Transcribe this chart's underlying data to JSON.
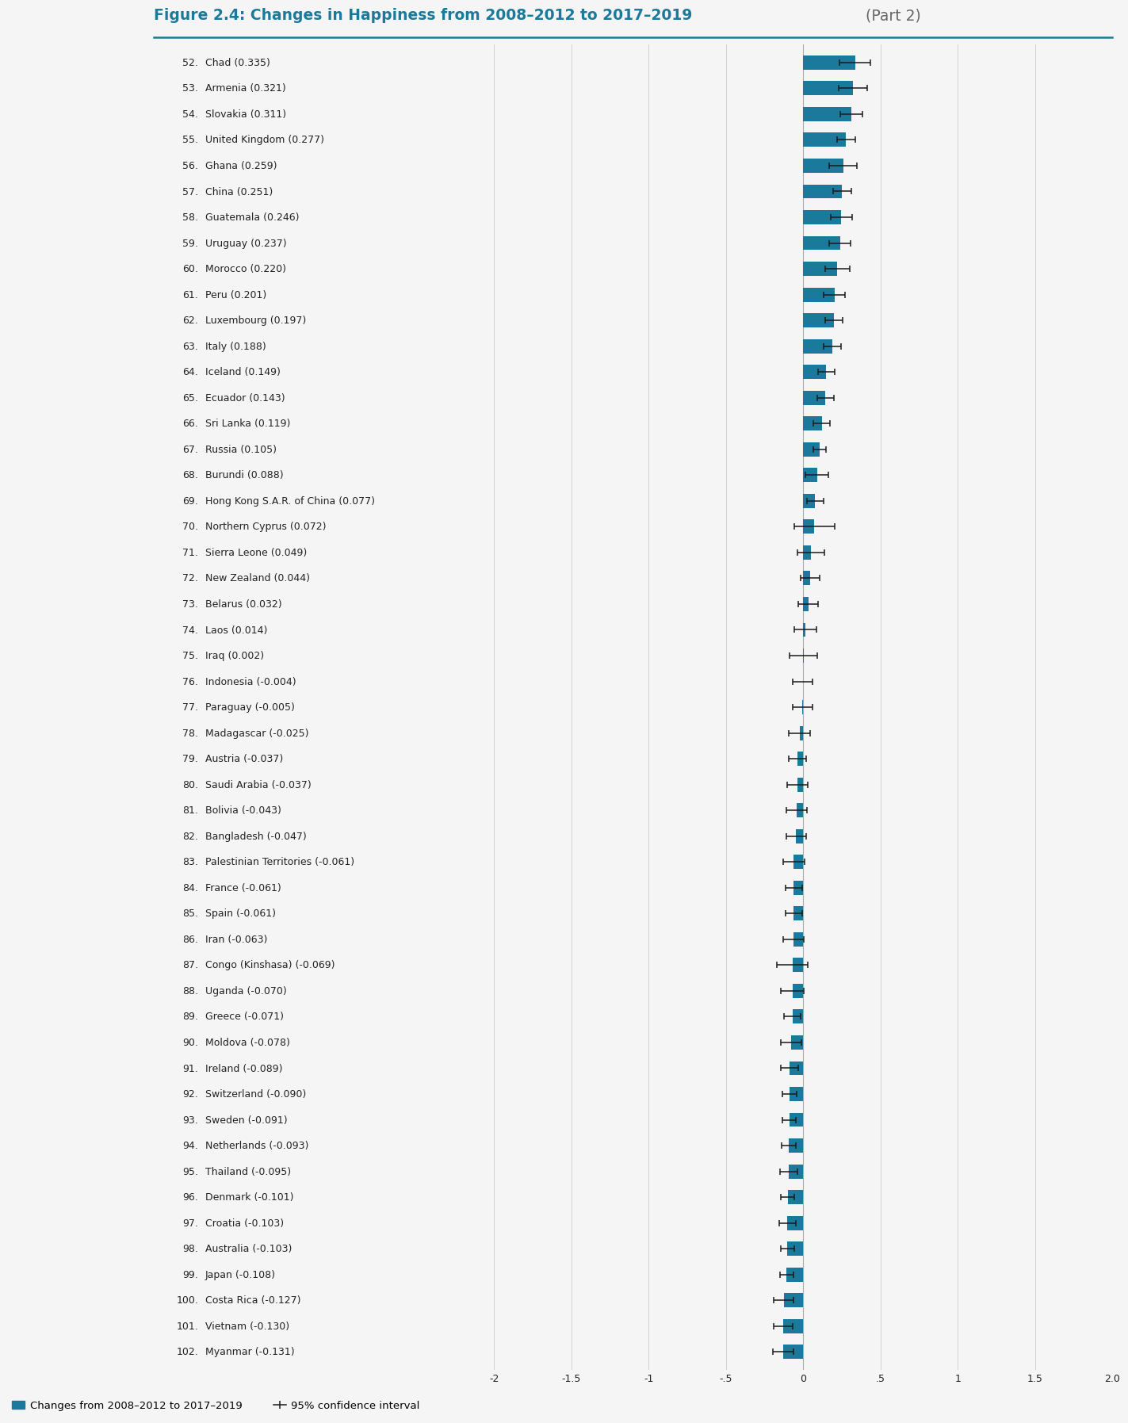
{
  "title_bold": "Figure 2.4: Changes in Happiness from 2008–2012 to 2017–2019",
  "title_normal": " (Part 2)",
  "background_color": "#f5f5f5",
  "bar_color": "#1b7a9c",
  "grid_color": "#d0d0d0",
  "title_color": "#1b7a9c",
  "separator_color": "#1b7a9c",
  "text_color": "#222222",
  "countries": [
    {
      "rank": 52,
      "name": "Chad",
      "value": 0.335,
      "ci_low": 0.1,
      "ci_high": 0.1
    },
    {
      "rank": 53,
      "name": "Armenia",
      "value": 0.321,
      "ci_low": 0.09,
      "ci_high": 0.09
    },
    {
      "rank": 54,
      "name": "Slovakia",
      "value": 0.311,
      "ci_low": 0.07,
      "ci_high": 0.07
    },
    {
      "rank": 55,
      "name": "United Kingdom",
      "value": 0.277,
      "ci_low": 0.06,
      "ci_high": 0.06
    },
    {
      "rank": 56,
      "name": "Ghana",
      "value": 0.259,
      "ci_low": 0.09,
      "ci_high": 0.09
    },
    {
      "rank": 57,
      "name": "China",
      "value": 0.251,
      "ci_low": 0.06,
      "ci_high": 0.06
    },
    {
      "rank": 58,
      "name": "Guatemala",
      "value": 0.246,
      "ci_low": 0.07,
      "ci_high": 0.07
    },
    {
      "rank": 59,
      "name": "Uruguay",
      "value": 0.237,
      "ci_low": 0.07,
      "ci_high": 0.07
    },
    {
      "rank": 60,
      "name": "Morocco",
      "value": 0.22,
      "ci_low": 0.08,
      "ci_high": 0.08
    },
    {
      "rank": 61,
      "name": "Peru",
      "value": 0.201,
      "ci_low": 0.07,
      "ci_high": 0.07
    },
    {
      "rank": 62,
      "name": "Luxembourg",
      "value": 0.197,
      "ci_low": 0.055,
      "ci_high": 0.055
    },
    {
      "rank": 63,
      "name": "Italy",
      "value": 0.188,
      "ci_low": 0.055,
      "ci_high": 0.055
    },
    {
      "rank": 64,
      "name": "Iceland",
      "value": 0.149,
      "ci_low": 0.055,
      "ci_high": 0.055
    },
    {
      "rank": 65,
      "name": "Ecuador",
      "value": 0.143,
      "ci_low": 0.055,
      "ci_high": 0.055
    },
    {
      "rank": 66,
      "name": "Sri Lanka",
      "value": 0.119,
      "ci_low": 0.055,
      "ci_high": 0.055
    },
    {
      "rank": 67,
      "name": "Russia",
      "value": 0.105,
      "ci_low": 0.04,
      "ci_high": 0.04
    },
    {
      "rank": 68,
      "name": "Burundi",
      "value": 0.088,
      "ci_low": 0.075,
      "ci_high": 0.075
    },
    {
      "rank": 69,
      "name": "Hong Kong S.A.R. of China",
      "value": 0.077,
      "ci_low": 0.055,
      "ci_high": 0.055
    },
    {
      "rank": 70,
      "name": "Northern Cyprus",
      "value": 0.072,
      "ci_low": 0.13,
      "ci_high": 0.13
    },
    {
      "rank": 71,
      "name": "Sierra Leone",
      "value": 0.049,
      "ci_low": 0.085,
      "ci_high": 0.085
    },
    {
      "rank": 72,
      "name": "New Zealand",
      "value": 0.044,
      "ci_low": 0.06,
      "ci_high": 0.06
    },
    {
      "rank": 73,
      "name": "Belarus",
      "value": 0.032,
      "ci_low": 0.065,
      "ci_high": 0.065
    },
    {
      "rank": 74,
      "name": "Laos",
      "value": 0.014,
      "ci_low": 0.07,
      "ci_high": 0.07
    },
    {
      "rank": 75,
      "name": "Iraq",
      "value": 0.002,
      "ci_low": 0.09,
      "ci_high": 0.09
    },
    {
      "rank": 76,
      "name": "Indonesia",
      "value": -0.004,
      "ci_low": 0.065,
      "ci_high": 0.065
    },
    {
      "rank": 77,
      "name": "Paraguay",
      "value": -0.005,
      "ci_low": 0.065,
      "ci_high": 0.065
    },
    {
      "rank": 78,
      "name": "Madagascar",
      "value": -0.025,
      "ci_low": 0.07,
      "ci_high": 0.07
    },
    {
      "rank": 79,
      "name": "Austria",
      "value": -0.037,
      "ci_low": 0.055,
      "ci_high": 0.055
    },
    {
      "rank": 80,
      "name": "Saudi Arabia",
      "value": -0.037,
      "ci_low": 0.065,
      "ci_high": 0.065
    },
    {
      "rank": 81,
      "name": "Bolivia",
      "value": -0.043,
      "ci_low": 0.065,
      "ci_high": 0.065
    },
    {
      "rank": 82,
      "name": "Bangladesh",
      "value": -0.047,
      "ci_low": 0.065,
      "ci_high": 0.065
    },
    {
      "rank": 83,
      "name": "Palestinian Territories",
      "value": -0.061,
      "ci_low": 0.07,
      "ci_high": 0.07
    },
    {
      "rank": 84,
      "name": "France",
      "value": -0.061,
      "ci_low": 0.055,
      "ci_high": 0.055
    },
    {
      "rank": 85,
      "name": "Spain",
      "value": -0.061,
      "ci_low": 0.055,
      "ci_high": 0.055
    },
    {
      "rank": 86,
      "name": "Iran",
      "value": -0.063,
      "ci_low": 0.065,
      "ci_high": 0.065
    },
    {
      "rank": 87,
      "name": "Congo (Kinshasa)",
      "value": -0.069,
      "ci_low": 0.1,
      "ci_high": 0.1
    },
    {
      "rank": 88,
      "name": "Uganda",
      "value": -0.07,
      "ci_low": 0.075,
      "ci_high": 0.075
    },
    {
      "rank": 89,
      "name": "Greece",
      "value": -0.071,
      "ci_low": 0.055,
      "ci_high": 0.055
    },
    {
      "rank": 90,
      "name": "Moldova",
      "value": -0.078,
      "ci_low": 0.065,
      "ci_high": 0.065
    },
    {
      "rank": 91,
      "name": "Ireland",
      "value": -0.089,
      "ci_low": 0.055,
      "ci_high": 0.055
    },
    {
      "rank": 92,
      "name": "Switzerland",
      "value": -0.09,
      "ci_low": 0.045,
      "ci_high": 0.045
    },
    {
      "rank": 93,
      "name": "Sweden",
      "value": -0.091,
      "ci_low": 0.045,
      "ci_high": 0.045
    },
    {
      "rank": 94,
      "name": "Netherlands",
      "value": -0.093,
      "ci_low": 0.045,
      "ci_high": 0.045
    },
    {
      "rank": 95,
      "name": "Thailand",
      "value": -0.095,
      "ci_low": 0.055,
      "ci_high": 0.055
    },
    {
      "rank": 96,
      "name": "Denmark",
      "value": -0.101,
      "ci_low": 0.045,
      "ci_high": 0.045
    },
    {
      "rank": 97,
      "name": "Croatia",
      "value": -0.103,
      "ci_low": 0.055,
      "ci_high": 0.055
    },
    {
      "rank": 98,
      "name": "Australia",
      "value": -0.103,
      "ci_low": 0.045,
      "ci_high": 0.045
    },
    {
      "rank": 99,
      "name": "Japan",
      "value": -0.108,
      "ci_low": 0.045,
      "ci_high": 0.045
    },
    {
      "rank": 100,
      "name": "Costa Rica",
      "value": -0.127,
      "ci_low": 0.065,
      "ci_high": 0.065
    },
    {
      "rank": 101,
      "name": "Vietnam",
      "value": -0.13,
      "ci_low": 0.06,
      "ci_high": 0.06
    },
    {
      "rank": 102,
      "name": "Myanmar",
      "value": -0.131,
      "ci_low": 0.065,
      "ci_high": 0.065
    }
  ],
  "xlim": [
    -2.0,
    2.0
  ],
  "xticks": [
    -2.0,
    -1.5,
    -1.0,
    -0.5,
    0.0,
    0.5,
    1.0,
    1.5,
    2.0
  ],
  "xtick_labels": [
    "-2",
    "-1.5",
    "-1",
    "-.5",
    "0",
    ".5",
    "1",
    "1.5",
    "2.0"
  ],
  "legend_bar_label": "Changes from 2008–2012 to 2017–2019",
  "legend_ci_label": "95% confidence interval"
}
